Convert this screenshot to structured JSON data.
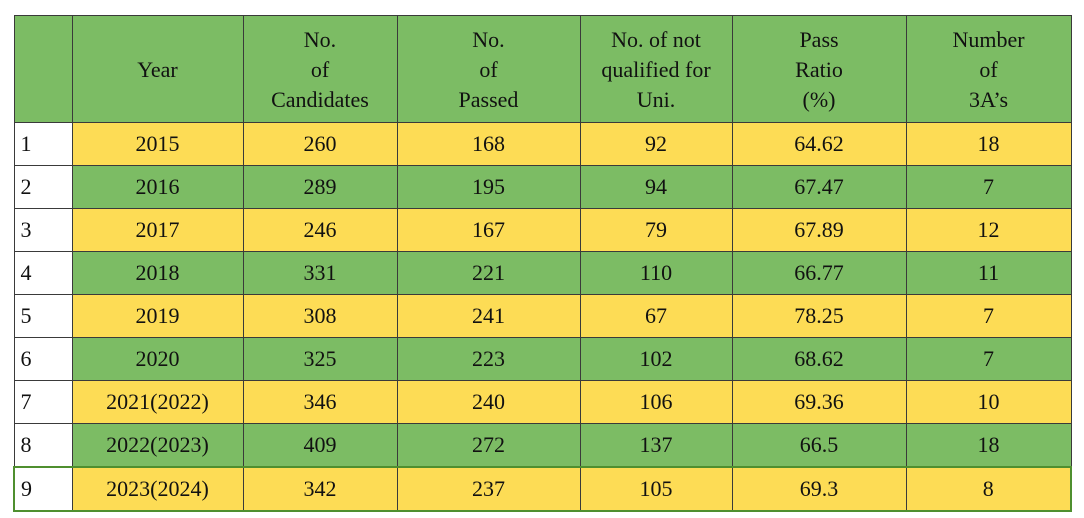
{
  "table": {
    "headers": [
      {
        "lines": [
          ""
        ]
      },
      {
        "lines": [
          "Year"
        ]
      },
      {
        "lines": [
          "No.",
          "of",
          "Candidates"
        ]
      },
      {
        "lines": [
          "No.",
          "of",
          "Passed"
        ]
      },
      {
        "lines": [
          "No. of not",
          "qualified for",
          "Uni."
        ]
      },
      {
        "lines": [
          "Pass",
          "Ratio",
          "(%)"
        ]
      },
      {
        "lines": [
          "Number",
          "of",
          "3A’s"
        ]
      }
    ],
    "rows": [
      {
        "index": "1",
        "year": "2015",
        "candidates": "260",
        "passed": "168",
        "not_qualified": "92",
        "pass_ratio": "64.62",
        "three_as": "18"
      },
      {
        "index": "2",
        "year": "2016",
        "candidates": "289",
        "passed": "195",
        "not_qualified": "94",
        "pass_ratio": "67.47",
        "three_as": "7"
      },
      {
        "index": "3",
        "year": "2017",
        "candidates": "246",
        "passed": "167",
        "not_qualified": "79",
        "pass_ratio": "67.89",
        "three_as": "12"
      },
      {
        "index": "4",
        "year": "2018",
        "candidates": "331",
        "passed": "221",
        "not_qualified": "110",
        "pass_ratio": "66.77",
        "three_as": "11"
      },
      {
        "index": "5",
        "year": "2019",
        "candidates": "308",
        "passed": "241",
        "not_qualified": "67",
        "pass_ratio": "78.25",
        "three_as": "7"
      },
      {
        "index": "6",
        "year": "2020",
        "candidates": "325",
        "passed": "223",
        "not_qualified": "102",
        "pass_ratio": "68.62",
        "three_as": "7"
      },
      {
        "index": "7",
        "year": "2021(2022)",
        "candidates": "346",
        "passed": "240",
        "not_qualified": "106",
        "pass_ratio": "69.36",
        "three_as": "10"
      },
      {
        "index": "8",
        "year": "2022(2023)",
        "candidates": "409",
        "passed": "272",
        "not_qualified": "137",
        "pass_ratio": "66.5",
        "three_as": "18"
      },
      {
        "index": "9",
        "year": "2023(2024)",
        "candidates": "342",
        "passed": "237",
        "not_qualified": "105",
        "pass_ratio": "69.3",
        "three_as": "8"
      }
    ],
    "row_colors": [
      "yellow",
      "green",
      "yellow",
      "green",
      "yellow",
      "green",
      "yellow",
      "green",
      "yellow"
    ],
    "highlighted_row": 8,
    "colors": {
      "yellow": "#fddc55",
      "green": "#7cbc64",
      "highlight_border": "#4f8f2f"
    }
  }
}
